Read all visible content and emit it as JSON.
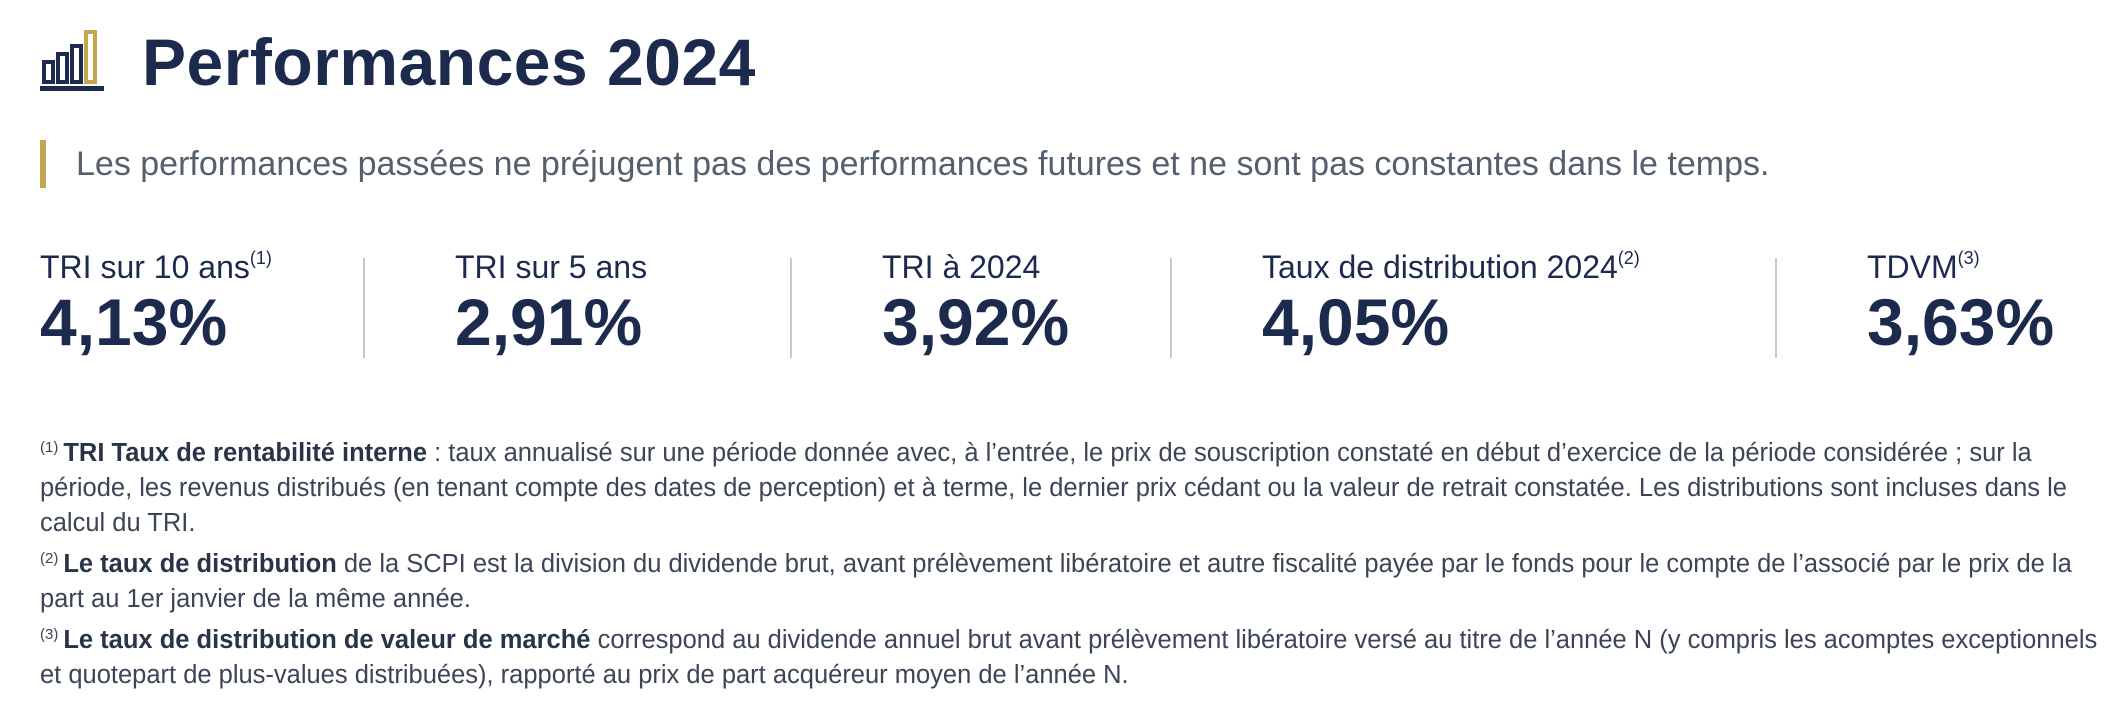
{
  "header": {
    "title": "Performances 2024",
    "icon": "bar-chart-icon",
    "colors": {
      "navy": "#1c2a4d",
      "gold": "#c2a752"
    }
  },
  "disclaimer": "Les performances passées ne préjugent pas des performances futures et ne sont pas constantes dans le temps.",
  "kpis": [
    {
      "label": "TRI sur 10 ans",
      "sup": "(1)",
      "value": "4,13%"
    },
    {
      "label": "TRI sur 5 ans",
      "sup": "",
      "value": "2,91%"
    },
    {
      "label": "TRI à 2024",
      "sup": "",
      "value": "3,92%"
    },
    {
      "label": "Taux de distribution 2024",
      "sup": "(2)",
      "value": "4,05%"
    },
    {
      "label": "TDVM",
      "sup": "(3)",
      "value": "3,63%"
    }
  ],
  "notes": [
    {
      "sup": "(1)",
      "bold": "TRI Taux de rentabilité interne",
      "text": " : taux annualisé sur une période donnée avec, à l’entrée, le prix de souscription constaté en début d’exercice de la période considérée ; sur la période, les revenus distribués (en tenant compte des dates de perception) et à terme, le dernier prix cédant ou la valeur de retrait constatée. Les distributions sont incluses dans le calcul du TRI."
    },
    {
      "sup": "(2)",
      "bold": "Le taux de distribution",
      "text": " de la SCPI est la division du dividende brut, avant prélèvement libératoire et autre fiscalité payée par le fonds pour le compte de l’asso­cié par le prix de la part au 1er janvier de la même année."
    },
    {
      "sup": "(3)",
      "bold": "Le taux de distribution de valeur de marché",
      "text": " correspond au dividende annuel brut avant prélèvement libératoire versé au titre de l’année N (y compris les acomptes exceptionnels et quotepart de plus-values distribuées), rapporté au prix de part acquéreur moyen de l’année N."
    }
  ]
}
